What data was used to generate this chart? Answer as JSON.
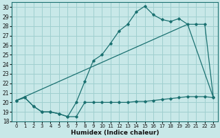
{
  "xlabel": "Humidex (Indice chaleur)",
  "bg_color": "#c8e8e8",
  "grid_color": "#9fcfcf",
  "line_color": "#1a7070",
  "xlim": [
    -0.5,
    23.5
  ],
  "ylim": [
    18,
    30.5
  ],
  "xticks": [
    0,
    1,
    2,
    3,
    4,
    5,
    6,
    7,
    8,
    9,
    10,
    11,
    12,
    13,
    14,
    15,
    16,
    17,
    18,
    19,
    20,
    21,
    22,
    23
  ],
  "yticks": [
    18,
    19,
    20,
    21,
    22,
    23,
    24,
    25,
    26,
    27,
    28,
    29,
    30
  ],
  "series1_x": [
    0,
    1,
    2,
    3,
    4,
    5,
    6,
    7,
    8,
    9,
    10,
    11,
    12,
    13,
    14,
    15,
    16,
    17,
    18,
    19,
    20,
    21,
    22,
    23
  ],
  "series1_y": [
    20.2,
    20.5,
    19.6,
    19.0,
    19.0,
    18.8,
    18.5,
    18.5,
    20.0,
    20.0,
    20.0,
    20.0,
    20.0,
    20.0,
    20.1,
    20.1,
    20.2,
    20.3,
    20.4,
    20.5,
    20.6,
    20.6,
    20.6,
    20.5
  ],
  "series2_x": [
    0,
    1,
    2,
    3,
    4,
    5,
    6,
    7,
    8,
    9,
    10,
    11,
    12,
    13,
    14,
    15,
    16,
    17,
    18,
    19,
    20,
    21,
    22,
    23
  ],
  "series2_y": [
    20.2,
    20.5,
    19.6,
    19.0,
    19.0,
    18.8,
    18.5,
    20.0,
    22.2,
    24.4,
    25.0,
    26.2,
    27.5,
    28.2,
    29.5,
    30.1,
    29.2,
    28.7,
    28.5,
    28.8,
    28.2,
    28.2,
    28.2,
    20.5
  ],
  "series3_x": [
    0,
    20,
    23
  ],
  "series3_y": [
    20.2,
    28.2,
    20.5
  ]
}
